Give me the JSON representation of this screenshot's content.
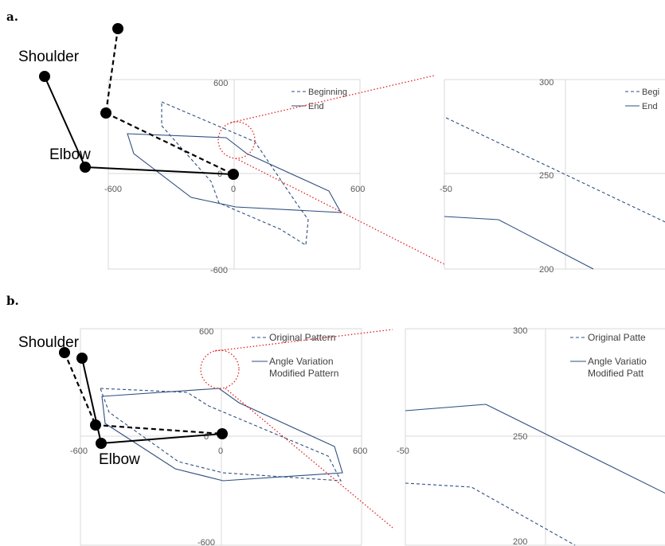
{
  "panel_a": {
    "label": "a.",
    "joint_labels": {
      "shoulder": "Shoulder",
      "elbow": "Elbow"
    },
    "main_plot": {
      "ticks": {
        "y_top": "600",
        "y_bottom": "-600",
        "x_left": "-600",
        "x_right": "600",
        "origin_x": "0",
        "origin_y": "0"
      },
      "legend": [
        {
          "label": "Beginning",
          "style": "dashed"
        },
        {
          "label": "End",
          "style": "solid"
        }
      ]
    },
    "zoom_plot": {
      "ticks": {
        "y_top": "300",
        "y_mid": "250",
        "y_bottom": "200",
        "x_left": "-50"
      },
      "legend": [
        {
          "label": "Begi",
          "style": "dashed"
        },
        {
          "label": "End",
          "style": "solid"
        }
      ]
    }
  },
  "panel_b": {
    "label": "b.",
    "joint_labels": {
      "shoulder": "Shoulder",
      "elbow": "Elbow"
    },
    "main_plot": {
      "ticks": {
        "y_top": "600",
        "y_bottom": "-600",
        "x_left": "-600",
        "x_right": "600",
        "origin_x": "0",
        "origin_y": "0"
      },
      "legend": [
        {
          "label": "Original Pattern",
          "style": "dashed"
        },
        {
          "label": "Angle Variation",
          "label2": "Modified Pattern",
          "style": "solid"
        }
      ]
    },
    "zoom_plot": {
      "ticks": {
        "y_top": "300",
        "y_mid": "250",
        "y_bottom": "200",
        "x_left": "-50"
      },
      "legend": [
        {
          "label": "Original Patte",
          "style": "dashed"
        },
        {
          "label": "Angle Variatio",
          "label2": "Modified Patt",
          "style": "solid"
        }
      ]
    }
  },
  "colors": {
    "trajectory": "#2e4f7f",
    "zoom_marker": "#e02020",
    "arm": "#000000",
    "grid": "#d9d9d9"
  }
}
